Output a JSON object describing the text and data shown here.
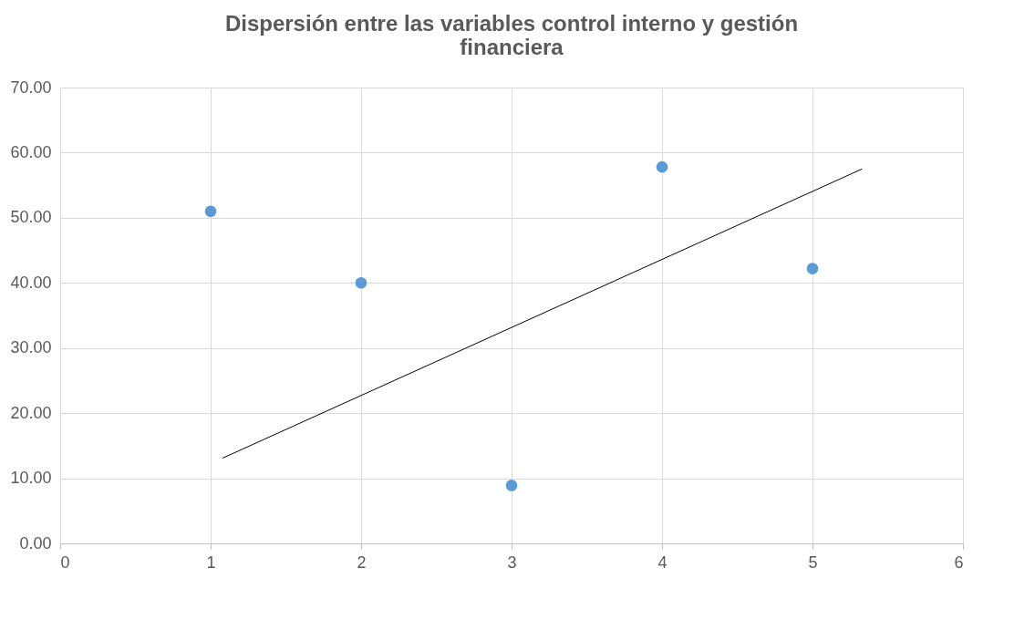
{
  "chart_data": {
    "type": "scatter",
    "title": "Dispersión entre las variables control interno y gestión financiera",
    "x": [
      1,
      2,
      3,
      4,
      5
    ],
    "series": [
      {
        "type": "scatter",
        "color": "#5b9bd5",
        "marker": "circle",
        "values": [
          51.0,
          40.0,
          8.9,
          57.8,
          42.2
        ]
      },
      {
        "type": "line",
        "color": "#000000",
        "x": [
          1.08,
          5.33
        ],
        "values": [
          13.1,
          57.5
        ],
        "line_style": "solid"
      }
    ],
    "xlim": [
      0,
      6
    ],
    "xticks": [
      0,
      1,
      2,
      3,
      4,
      5,
      6
    ],
    "ylim": [
      0,
      70
    ],
    "yticks": [
      {
        "value": 0,
        "label": "0.00"
      },
      {
        "value": 10,
        "label": "10.00"
      },
      {
        "value": 20,
        "label": "20.00"
      },
      {
        "value": 30,
        "label": "30.00"
      },
      {
        "value": 40,
        "label": "40.00"
      },
      {
        "value": 50,
        "label": "50.00"
      },
      {
        "value": 60,
        "label": "60.00"
      },
      {
        "value": 70,
        "label": "70.00"
      }
    ],
    "grid": true,
    "legend": false
  }
}
